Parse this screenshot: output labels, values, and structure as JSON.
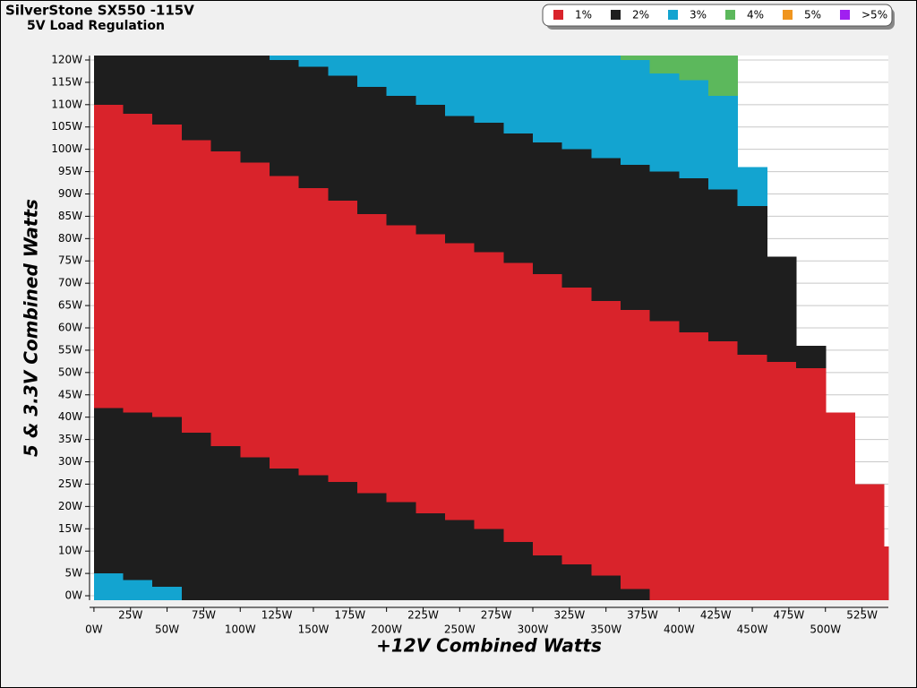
{
  "chart_data": {
    "type": "region",
    "title": "SilverStone SX550 -115V",
    "subtitle": "5V Load Regulation",
    "x_label": "+12V Combined Watts",
    "y_label": "5 & 3.3V Combined Watts",
    "series": [
      {
        "name": "1%",
        "color": "#d9232b"
      },
      {
        "name": "2%",
        "color": "#1e1e1e"
      },
      {
        "name": "3%",
        "color": "#13a4d0"
      },
      {
        "name": "4%",
        "color": "#5cb85c"
      },
      {
        "name": "5%",
        "color": "#f0951f"
      },
      {
        "name": ">5%",
        "color": "#a020f0"
      }
    ],
    "x": [
      0,
      20,
      40,
      60,
      80,
      100,
      120,
      140,
      160,
      180,
      200,
      220,
      240,
      260,
      280,
      300,
      320,
      340,
      360,
      380,
      400,
      420,
      440,
      460,
      480,
      500,
      520,
      540
    ],
    "layers": [
      {
        "color": "#13a4d0",
        "values": [
          6,
          4.5,
          3,
          0,
          0,
          0,
          0,
          0,
          0,
          0,
          0,
          0,
          0,
          0,
          0,
          0,
          0,
          0,
          0,
          0,
          0,
          0,
          0,
          0,
          0,
          0,
          0,
          0
        ]
      },
      {
        "color": "#1e1e1e",
        "values": [
          37,
          37.5,
          38,
          37.5,
          34.5,
          32,
          29.5,
          28,
          26.5,
          24,
          22,
          19.5,
          18,
          16,
          13,
          10,
          8,
          5.5,
          2.5,
          0,
          0,
          0,
          0,
          0,
          0,
          0,
          0,
          0
        ]
      },
      {
        "color": "#d9232b",
        "values": [
          68,
          67,
          65.5,
          65.5,
          66,
          66,
          65.5,
          64.3,
          63,
          62.5,
          62,
          62.5,
          62,
          62,
          62.5,
          63,
          62,
          61.5,
          62.5,
          62.5,
          60,
          58,
          55,
          53.4,
          52,
          42,
          26,
          12
        ]
      },
      {
        "color": "#1e1e1e",
        "values": [
          11,
          13,
          15.5,
          19,
          21.5,
          24,
          26,
          27.2,
          28,
          28.5,
          29,
          29,
          28.5,
          29,
          29,
          29.5,
          31,
          32,
          32.5,
          33.5,
          34.5,
          34,
          33.3,
          23.6,
          5,
          0,
          0,
          0
        ]
      },
      {
        "color": "#13a4d0",
        "values": [
          0,
          0,
          0,
          0,
          0,
          0,
          1,
          2.5,
          4.5,
          7,
          9,
          11,
          13.5,
          15,
          17.5,
          19.5,
          21,
          23,
          23.5,
          22,
          22,
          21,
          8.7,
          0,
          0,
          0,
          0,
          0
        ]
      },
      {
        "color": "#5cb85c",
        "values": [
          0,
          0,
          0,
          0,
          0,
          0,
          0,
          0,
          0,
          0,
          0,
          0,
          0,
          0,
          0,
          0,
          0,
          0,
          1,
          4,
          5.5,
          9,
          0,
          0,
          0,
          0,
          0,
          0
        ]
      }
    ],
    "xlim": [
      -3,
      543
    ],
    "ylim": [
      -1,
      121
    ],
    "xticks": [
      {
        "value": 0,
        "label": "0W"
      },
      {
        "value": 25,
        "label": "25W"
      },
      {
        "value": 50,
        "label": "50W"
      },
      {
        "value": 75,
        "label": "75W"
      },
      {
        "value": 100,
        "label": "100W"
      },
      {
        "value": 125,
        "label": "125W"
      },
      {
        "value": 150,
        "label": "150W"
      },
      {
        "value": 175,
        "label": "175W"
      },
      {
        "value": 200,
        "label": "200W"
      },
      {
        "value": 225,
        "label": "225W"
      },
      {
        "value": 250,
        "label": "250W"
      },
      {
        "value": 275,
        "label": "275W"
      },
      {
        "value": 300,
        "label": "300W"
      },
      {
        "value": 325,
        "label": "325W"
      },
      {
        "value": 350,
        "label": "350W"
      },
      {
        "value": 375,
        "label": "375W"
      },
      {
        "value": 400,
        "label": "400W"
      },
      {
        "value": 425,
        "label": "425W"
      },
      {
        "value": 450,
        "label": "450W"
      },
      {
        "value": 475,
        "label": "475W"
      },
      {
        "value": 500,
        "label": "500W"
      },
      {
        "value": 525,
        "label": "525W"
      }
    ],
    "yticks": [
      {
        "value": 0,
        "label": "0W"
      },
      {
        "value": 5,
        "label": "5W"
      },
      {
        "value": 10,
        "label": "10W"
      },
      {
        "value": 15,
        "label": "15W"
      },
      {
        "value": 20,
        "label": "20W"
      },
      {
        "value": 25,
        "label": "25W"
      },
      {
        "value": 30,
        "label": "30W"
      },
      {
        "value": 35,
        "label": "35W"
      },
      {
        "value": 40,
        "label": "40W"
      },
      {
        "value": 45,
        "label": "45W"
      },
      {
        "value": 50,
        "label": "50W"
      },
      {
        "value": 55,
        "label": "55W"
      },
      {
        "value": 60,
        "label": "60W"
      },
      {
        "value": 65,
        "label": "65W"
      },
      {
        "value": 70,
        "label": "70W"
      },
      {
        "value": 75,
        "label": "75W"
      },
      {
        "value": 80,
        "label": "80W"
      },
      {
        "value": 85,
        "label": "85W"
      },
      {
        "value": 90,
        "label": "90W"
      },
      {
        "value": 95,
        "label": "95W"
      },
      {
        "value": 100,
        "label": "100W"
      },
      {
        "value": 105,
        "label": "105W"
      },
      {
        "value": 110,
        "label": "110W"
      },
      {
        "value": 115,
        "label": "115W"
      },
      {
        "value": 120,
        "label": "120W"
      }
    ],
    "grid": true,
    "legend": "top-right"
  }
}
